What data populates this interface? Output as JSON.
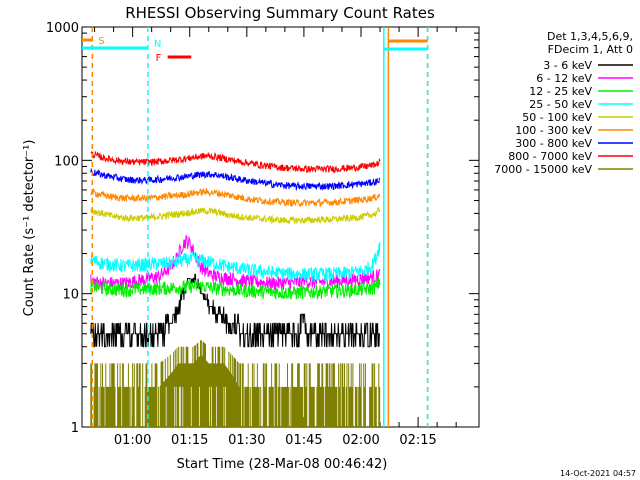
{
  "chart_data": {
    "type": "line",
    "title": "RHESSI Observing Summary Count Rates",
    "xlabel": "Start Time (28-Mar-08 00:46:42)",
    "ylabel": "Count Rate (s⁻¹ detector⁻¹)",
    "yscale": "log",
    "ylim": [
      1,
      1000
    ],
    "xlim_minutes": [
      46.7,
      151
    ],
    "x_ticks": [
      {
        "minute": 60,
        "label": "01:00"
      },
      {
        "minute": 75,
        "label": "01:15"
      },
      {
        "minute": 90,
        "label": "01:30"
      },
      {
        "minute": 105,
        "label": "01:45"
      },
      {
        "minute": 120,
        "label": "02:00"
      },
      {
        "minute": 135,
        "label": "02:15"
      }
    ],
    "y_ticks": [
      {
        "value": 1,
        "label": "1"
      },
      {
        "value": 10,
        "label": "10"
      },
      {
        "value": 100,
        "label": "100"
      },
      {
        "value": 1000,
        "label": "1000"
      }
    ],
    "legend": {
      "position": "right",
      "header": [
        "Det 1,3,4,5,6,9,",
        "FDecim 1, Att 0"
      ]
    },
    "series": [
      {
        "name": "3 - 6 keV",
        "color": "#000000",
        "x": [
          49,
          52,
          55,
          58,
          61,
          64,
          67,
          70,
          72,
          73,
          74,
          75,
          76,
          77,
          78,
          79,
          80,
          81,
          82,
          84,
          86,
          88,
          90,
          93,
          96,
          99,
          102,
          104,
          105,
          106,
          108,
          111,
          114,
          117,
          120,
          122,
          124,
          125
        ],
        "y": [
          5.5,
          5.0,
          4.9,
          5.0,
          5.0,
          5.0,
          5.0,
          6.0,
          7.5,
          9.5,
          11.5,
          12.5,
          13.0,
          12.0,
          10.5,
          9.5,
          8.5,
          7.8,
          7.2,
          6.5,
          6.0,
          5.5,
          5.2,
          5.0,
          5.0,
          5.0,
          5.1,
          5.5,
          7.0,
          5.3,
          5.1,
          5.0,
          5.0,
          5.0,
          5.1,
          5.2,
          5.3,
          5.4
        ]
      },
      {
        "name": "6 - 12 keV",
        "color": "#ff00ff",
        "x": [
          49,
          52,
          55,
          58,
          61,
          64,
          67,
          70,
          72,
          73,
          74,
          75,
          76,
          77,
          78,
          79,
          80,
          81,
          82,
          84,
          86,
          88,
          90,
          93,
          96,
          99,
          102,
          104,
          105,
          106,
          108,
          111,
          114,
          117,
          120,
          122,
          124,
          125
        ],
        "y": [
          12.5,
          12.0,
          12.0,
          12.0,
          12.5,
          13.0,
          13.5,
          16.0,
          19.5,
          23.0,
          25.0,
          24.0,
          21.0,
          18.0,
          16.0,
          15.0,
          14.3,
          13.8,
          13.5,
          13.2,
          13.0,
          12.7,
          12.5,
          12.3,
          12.0,
          12.0,
          12.1,
          12.2,
          13.0,
          12.3,
          12.2,
          12.3,
          12.5,
          12.7,
          13.0,
          13.3,
          13.6,
          14.0
        ]
      },
      {
        "name": "12 - 25 keV",
        "color": "#00ee00",
        "x": [
          49,
          52,
          55,
          58,
          61,
          64,
          67,
          70,
          73,
          76,
          79,
          82,
          85,
          88,
          91,
          94,
          97,
          100,
          103,
          106,
          109,
          112,
          115,
          118,
          121,
          124,
          125
        ],
        "y": [
          11.5,
          11.0,
          10.8,
          10.7,
          10.8,
          10.9,
          11.0,
          11.1,
          11.2,
          11.4,
          11.3,
          11.0,
          10.8,
          10.6,
          10.5,
          10.4,
          10.3,
          10.2,
          10.2,
          10.3,
          10.4,
          10.5,
          10.6,
          10.7,
          10.8,
          11.2,
          12.5
        ]
      },
      {
        "name": "25 - 50 keV",
        "color": "#00ffff",
        "x": [
          49,
          52,
          55,
          58,
          61,
          64,
          67,
          70,
          73,
          76,
          79,
          82,
          85,
          88,
          91,
          94,
          97,
          100,
          103,
          106,
          109,
          112,
          115,
          118,
          121,
          123,
          124,
          125
        ],
        "y": [
          18.0,
          17.0,
          16.5,
          16.2,
          16.4,
          16.6,
          16.8,
          17.0,
          17.8,
          18.2,
          17.6,
          16.8,
          16.0,
          15.5,
          15.0,
          14.7,
          14.4,
          14.2,
          14.1,
          14.0,
          14.0,
          14.1,
          14.2,
          14.5,
          15.0,
          16.5,
          19.0,
          24.0
        ]
      },
      {
        "name": "50 - 100 keV",
        "color": "#cccc00",
        "x": [
          49,
          52,
          55,
          58,
          61,
          64,
          67,
          70,
          73,
          76,
          79,
          82,
          85,
          88,
          91,
          94,
          97,
          100,
          103,
          106,
          109,
          112,
          115,
          118,
          121,
          124,
          125
        ],
        "y": [
          42,
          40,
          38,
          37,
          37,
          37,
          38,
          39,
          40,
          41,
          42,
          41,
          39,
          38,
          37,
          36.5,
          36,
          35.5,
          35.5,
          35.5,
          36,
          36,
          36.5,
          37,
          38,
          40,
          43
        ]
      },
      {
        "name": "100 - 300 keV",
        "color": "#ff8800",
        "x": [
          49,
          52,
          55,
          58,
          61,
          64,
          67,
          70,
          73,
          76,
          79,
          82,
          85,
          88,
          91,
          94,
          97,
          100,
          103,
          106,
          109,
          112,
          115,
          118,
          121,
          124,
          125
        ],
        "y": [
          58,
          55,
          53,
          52,
          52,
          52,
          53,
          54,
          55,
          57,
          58,
          57,
          55,
          53,
          51,
          50,
          49,
          48.5,
          48,
          48,
          48,
          48.5,
          49,
          50,
          51,
          53,
          55
        ]
      },
      {
        "name": "300 - 800 keV",
        "color": "#0000ff",
        "x": [
          49,
          52,
          55,
          58,
          61,
          64,
          67,
          70,
          73,
          76,
          79,
          82,
          85,
          88,
          91,
          94,
          97,
          100,
          103,
          106,
          109,
          112,
          115,
          118,
          121,
          124,
          125
        ],
        "y": [
          82,
          78,
          75,
          72,
          71,
          71,
          72,
          74,
          75,
          77,
          79,
          78,
          75,
          72,
          70,
          68,
          66,
          65,
          64,
          64,
          64,
          64,
          65,
          66,
          67,
          69,
          72
        ]
      },
      {
        "name": "800 - 7000 keV",
        "color": "#ff0000",
        "x": [
          49,
          52,
          55,
          58,
          61,
          64,
          67,
          70,
          73,
          76,
          79,
          82,
          85,
          88,
          91,
          94,
          97,
          100,
          103,
          106,
          109,
          112,
          115,
          118,
          121,
          124,
          125
        ],
        "y": [
          112,
          105,
          101,
          98,
          97,
          97,
          98,
          100,
          102,
          105,
          108,
          106,
          102,
          98,
          95,
          92,
          90,
          88,
          87,
          86,
          86,
          86,
          87,
          88,
          90,
          93,
          98
        ]
      },
      {
        "name": "7000 - 15000 keV",
        "color": "#808000",
        "x": [
          49,
          53,
          57,
          61,
          64,
          67,
          70,
          72,
          74,
          76,
          78,
          80,
          82,
          84,
          86,
          88,
          90,
          93,
          96,
          99,
          102,
          105,
          108,
          111,
          114,
          117,
          120,
          122,
          124,
          125
        ],
        "y": [
          2,
          2,
          2,
          2,
          2,
          2,
          2.5,
          3,
          3,
          3,
          3.5,
          3,
          3,
          3,
          2.5,
          2,
          2,
          2,
          2,
          2,
          2,
          2,
          2,
          2,
          2,
          2,
          2,
          2,
          2,
          2
        ]
      }
    ],
    "annotations": {
      "flags": [
        {
          "label": "S",
          "color": "#ff8800",
          "x_start": 46.7,
          "x_end": 49.4
        },
        {
          "label": "N",
          "color": "#00ffff",
          "x_start": 46.7,
          "x_end": 64
        },
        {
          "label": "F",
          "color": "#ff0000",
          "x_start": 69.2,
          "x_end": 75.4
        }
      ],
      "top_bars": [
        {
          "color": "#ff8800",
          "x_start": 127,
          "x_end": 137.5
        },
        {
          "color": "#00ffff",
          "x_start": 126,
          "x_end": 137.5
        }
      ],
      "vertical_markers": [
        {
          "color": "#ff8800",
          "x": 49.4,
          "style": "dashed"
        },
        {
          "color": "#00ffff",
          "x": 64.0,
          "style": "dashed"
        },
        {
          "color": "#00ffff",
          "x": 126.0,
          "style": "solid"
        },
        {
          "color": "#ff8800",
          "x": 127.2,
          "style": "solid"
        },
        {
          "color": "#ff8800",
          "x": 137.5,
          "style": "dashed"
        },
        {
          "color": "#00ffff",
          "x": 137.5,
          "style": "dashed"
        }
      ]
    }
  },
  "footer": {
    "timestamp": "14-Oct-2021 04:57"
  }
}
